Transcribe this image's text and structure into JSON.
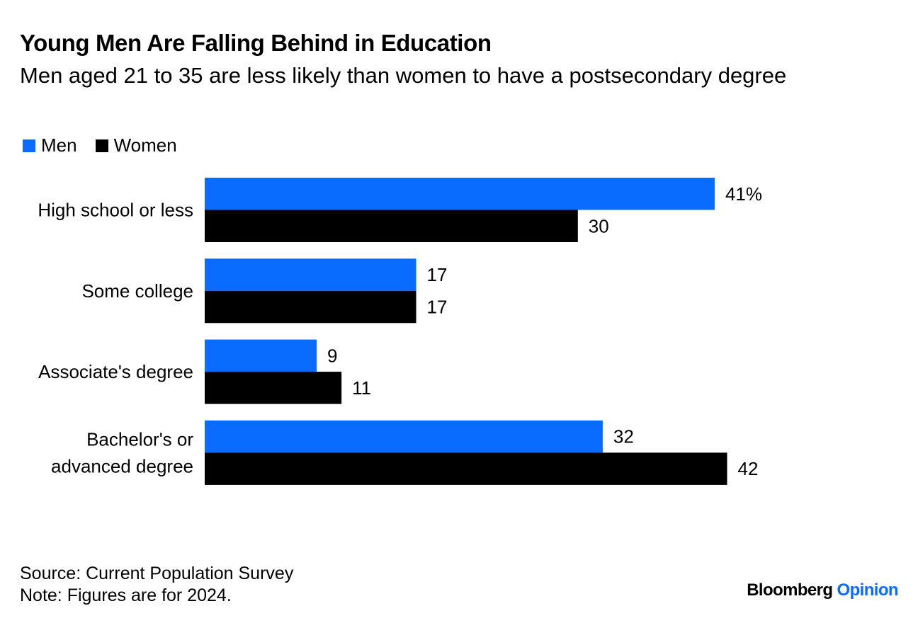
{
  "header": {
    "title": "Young Men Are Falling Behind in Education",
    "subtitle": "Men aged 21 to 35 are less likely than women to have a postsecondary degree"
  },
  "legend": {
    "men": "Men",
    "women": "Women"
  },
  "colors": {
    "men": "#0A6CFF",
    "women": "#000000",
    "text": "#000000"
  },
  "chart_data": {
    "type": "bar",
    "orientation": "horizontal",
    "title": "Young Men Are Falling Behind in Education",
    "subtitle": "Men aged 21 to 35 are less likely than women to have a postsecondary degree",
    "xlabel": "",
    "ylabel": "",
    "unit": "%",
    "xlim": [
      0,
      42
    ],
    "grid": false,
    "legend_position": "top-left",
    "categories": [
      [
        "High school or less"
      ],
      [
        "Some college"
      ],
      [
        "Associate's degree"
      ],
      [
        "Bachelor's or",
        "advanced degree"
      ]
    ],
    "series": [
      {
        "name": "Men",
        "values": [
          41,
          17,
          9,
          32
        ],
        "labels": [
          "41%",
          "17",
          "9",
          "32"
        ]
      },
      {
        "name": "Women",
        "values": [
          30,
          17,
          11,
          42
        ],
        "labels": [
          "30",
          "17",
          "11",
          "42"
        ]
      }
    ]
  },
  "footer": {
    "source": "Source: Current Population Survey",
    "note": "Note: Figures are for 2024."
  },
  "brand": {
    "name": "Bloomberg",
    "section": "Opinion",
    "section_color": "#0A6CFF"
  }
}
